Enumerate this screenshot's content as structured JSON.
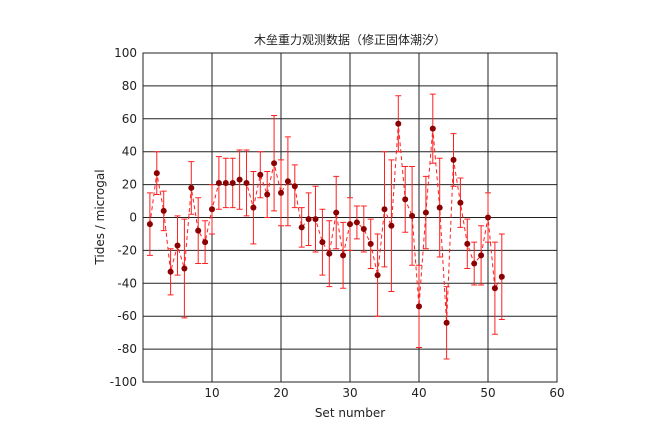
{
  "chart_data": {
    "type": "errorbar",
    "title": "木垒重力观测数据（修正固体潮汐）",
    "x_label": "Set number",
    "y_label": "Tides / microgal",
    "x": [
      1,
      2,
      3,
      4,
      5,
      6,
      7,
      8,
      9,
      10,
      11,
      12,
      13,
      14,
      15,
      16,
      17,
      18,
      19,
      20,
      21,
      22,
      23,
      24,
      25,
      26,
      27,
      28,
      29,
      30,
      31,
      32,
      33,
      34,
      35,
      36,
      37,
      38,
      39,
      40,
      41,
      42,
      43,
      44,
      45,
      46,
      47,
      48,
      49,
      50,
      51,
      52
    ],
    "values": [
      -4,
      27,
      4,
      -33,
      -17,
      -31,
      18,
      -8,
      -15,
      5,
      21,
      21,
      21,
      23,
      21,
      6,
      26,
      14,
      33,
      15,
      22,
      19,
      -6,
      -1,
      -1,
      -15,
      -22,
      3,
      -23,
      -4,
      -3,
      -7,
      -16,
      -35,
      5,
      -5,
      57,
      11,
      1,
      -54,
      3,
      54,
      6,
      -64,
      35,
      9,
      -16,
      -28,
      -23,
      0,
      -43,
      -36
    ],
    "errors": [
      19,
      13,
      12,
      14,
      18,
      30,
      16,
      20,
      13,
      15,
      16,
      15,
      15,
      18,
      20,
      22,
      14,
      14,
      29,
      20,
      27,
      13,
      12,
      16,
      20,
      20,
      20,
      22,
      20,
      16,
      10,
      14,
      15,
      25,
      35,
      40,
      17,
      20,
      30,
      25,
      22,
      21,
      30,
      22,
      16,
      15,
      15,
      13,
      18,
      15,
      28,
      26
    ],
    "line_color": "#ff2020",
    "marker_color": "#8b0000",
    "xlim": [
      0,
      60
    ],
    "xticks": [
      10,
      20,
      30,
      40,
      50,
      60
    ],
    "ylim": [
      -100,
      100
    ],
    "yticks": [
      -100,
      -80,
      -60,
      -40,
      -20,
      0,
      20,
      40,
      60,
      80,
      100
    ],
    "grid": true
  }
}
